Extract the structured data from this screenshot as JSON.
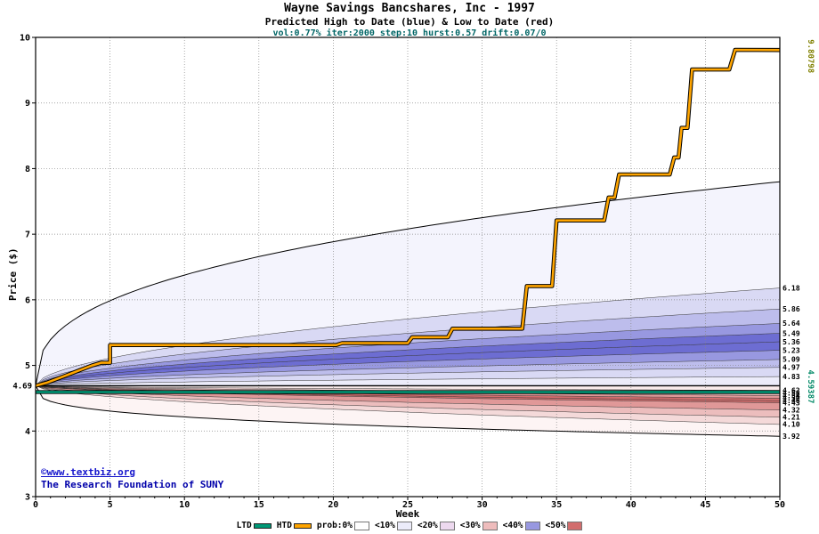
{
  "header": {
    "title": "Wayne Savings Bancshares, Inc - 1997",
    "subtitle": "Predicted High to Date (blue) &  Low to Date (red)",
    "params": "vol:0.77% iter:2000 step:10 hurst:0.57 drift:0.07/0"
  },
  "annotations": {
    "copyright": "©www.textbiz.org",
    "foundation": "The Research Foundation of SUNY"
  },
  "legend": {
    "items": [
      {
        "label": "LTD",
        "type": "line",
        "color": "#009977"
      },
      {
        "label": "HTD",
        "type": "line",
        "color": "#ffa500"
      },
      {
        "label": "prob:0%",
        "type": "box",
        "color": "#ffffff"
      },
      {
        "label": "<10%",
        "type": "box",
        "color": "#ececfa"
      },
      {
        "label": "<20%",
        "type": "box",
        "color": "#edd9ef"
      },
      {
        "label": "<30%",
        "type": "box",
        "color": "#eebcbc"
      },
      {
        "label": "<40%",
        "type": "box",
        "color": "#9898e0"
      },
      {
        "label": "<50%",
        "type": "box",
        "color": "#d26d6d"
      }
    ]
  },
  "chart_data": {
    "type": "area",
    "title": "Wayne Savings Bancshares, Inc - 1997",
    "subtitle": "Predicted High to Date (blue) &  Low to Date (red)",
    "xlabel": "Week",
    "ylabel": "Price ($)",
    "x_range": [
      0,
      50
    ],
    "y_range": [
      3,
      10
    ],
    "x_ticks": [
      0,
      5,
      10,
      15,
      20,
      25,
      30,
      35,
      40,
      45,
      50
    ],
    "y_ticks": [
      3,
      4,
      5,
      6,
      7,
      8,
      9,
      10
    ],
    "grid": true,
    "legend_position": "bottom",
    "start_price": 4.69,
    "start_label": "4.69",
    "ltd": {
      "label": "4.59387",
      "value": 4.59387
    },
    "htd_final": {
      "label": "9.80798",
      "value": 9.80798
    },
    "htd_series": [
      [
        0,
        4.69
      ],
      [
        0.8,
        4.74
      ],
      [
        1.5,
        4.8
      ],
      [
        2.2,
        4.86
      ],
      [
        3.0,
        4.93
      ],
      [
        3.8,
        5.0
      ],
      [
        4.4,
        5.04
      ],
      [
        5.0,
        5.04
      ],
      [
        5.0,
        5.31
      ],
      [
        20.2,
        5.31
      ],
      [
        20.6,
        5.34
      ],
      [
        25.0,
        5.34
      ],
      [
        25.3,
        5.43
      ],
      [
        27.7,
        5.43
      ],
      [
        28.0,
        5.56
      ],
      [
        32.7,
        5.56
      ],
      [
        33.0,
        6.21
      ],
      [
        34.7,
        6.21
      ],
      [
        35.0,
        7.21
      ],
      [
        38.2,
        7.21
      ],
      [
        38.5,
        7.56
      ],
      [
        38.9,
        7.56
      ],
      [
        39.2,
        7.91
      ],
      [
        42.6,
        7.91
      ],
      [
        42.9,
        8.17
      ],
      [
        43.2,
        8.17
      ],
      [
        43.4,
        8.62
      ],
      [
        43.8,
        8.62
      ],
      [
        44.1,
        9.51
      ],
      [
        46.6,
        9.51
      ],
      [
        47.0,
        9.81
      ],
      [
        50,
        9.80798
      ]
    ],
    "high_bands": {
      "boundaries": [
        4.83,
        4.97,
        5.09,
        5.23,
        5.36,
        5.49,
        5.64,
        5.86,
        6.18
      ],
      "envelope": 7.8
    },
    "low_bands": {
      "boundaries": [
        4.62,
        4.58,
        4.54,
        4.5,
        4.46,
        4.43,
        4.32,
        4.21,
        4.1
      ],
      "envelope": 3.92
    },
    "right_labels": [
      {
        "text": "6.18",
        "value": 6.18
      },
      {
        "text": "5.86",
        "value": 5.86
      },
      {
        "text": "5.64",
        "value": 5.64
      },
      {
        "text": "5.49",
        "value": 5.49
      },
      {
        "text": "5.36",
        "value": 5.36
      },
      {
        "text": "5.23",
        "value": 5.23
      },
      {
        "text": "5.09",
        "value": 5.09
      },
      {
        "text": "4.97",
        "value": 4.97
      },
      {
        "text": "4.83",
        "value": 4.83
      },
      {
        "text": "4.62",
        "value": 4.62
      },
      {
        "text": "4.58",
        "value": 4.58
      },
      {
        "text": "4.54",
        "value": 4.54
      },
      {
        "text": "4.50",
        "value": 4.5
      },
      {
        "text": "4.46",
        "value": 4.46
      },
      {
        "text": "4.43",
        "value": 4.43
      },
      {
        "text": "4.32",
        "value": 4.32
      },
      {
        "text": "4.21",
        "value": 4.21
      },
      {
        "text": "4.10",
        "value": 4.1
      },
      {
        "text": "3.92",
        "value": 3.92
      }
    ],
    "palette": {
      "axis": "#000000",
      "grid": "#888888",
      "htd": "#ffa500",
      "htd_outline": "#000000",
      "ltd": "#009977",
      "center_line": "#000000",
      "htd_final_label": "#808000",
      "ltd_final_label": "#008866",
      "blue_bands": [
        "#ececfa",
        "#d9d9f4",
        "#bdbdec",
        "#9898e0",
        "#6d6dd2",
        "#6d6dd2",
        "#9898e0",
        "#bdbdec",
        "#d9d9f4",
        "#f4f4fd"
      ],
      "red_bands": [
        "#faecec",
        "#f4d9d9",
        "#ecbdbd",
        "#e09898",
        "#d26d6d",
        "#d26d6d",
        "#e09898",
        "#ecbdbd",
        "#f4d9d9",
        "#fdf4f4"
      ]
    }
  }
}
